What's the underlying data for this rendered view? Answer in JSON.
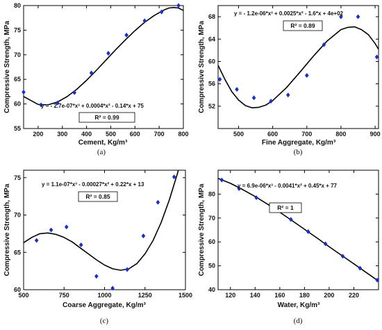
{
  "chart_data": [
    {
      "type": "scatter",
      "panel_label": "(a)",
      "xlabel": "Cement, Kg/m³",
      "ylabel": "Compressive Strength, MPa",
      "xlim": [
        140,
        800
      ],
      "ylim": [
        55,
        80
      ],
      "xticks": [
        "200",
        "300",
        "400",
        "500",
        "600",
        "700",
        "800"
      ],
      "yticks": [
        "55",
        "60",
        "65",
        "70",
        "75",
        "80"
      ],
      "equation": "y = - 2.7e-07*x³ + 0.0004*x² - 0.14*x + 75",
      "r2": "R² = 0.99",
      "x": [
        140,
        212,
        280,
        350,
        420,
        490,
        565,
        640,
        710,
        780
      ],
      "y": [
        62.4,
        59.8,
        60.2,
        62.3,
        66.3,
        70.3,
        74.0,
        76.9,
        78.7,
        80.0
      ],
      "fit_x": [
        140,
        200,
        240,
        280,
        320,
        360,
        400,
        440,
        480,
        520,
        560,
        600,
        640,
        680,
        720,
        740,
        760,
        780,
        800
      ],
      "fit_y": [
        61.5,
        59.9,
        59.8,
        60.4,
        61.5,
        63.0,
        64.8,
        66.8,
        68.9,
        71.0,
        73.0,
        74.9,
        76.6,
        78.0,
        79.1,
        79.5,
        79.6,
        79.5,
        79.0
      ],
      "grid": false,
      "marker_color": "#1a2ecc",
      "line_color": "#000000"
    },
    {
      "type": "scatter",
      "panel_label": "(b)",
      "xlabel": "Fine Aggregate, Kg/m³",
      "ylabel": "Compressive Strength, MPa",
      "xlim": [
        440,
        910
      ],
      "ylim": [
        48,
        70
      ],
      "xticks": [
        "500",
        "600",
        "700",
        "800",
        "900"
      ],
      "yticks": [
        "52",
        "56",
        "60",
        "64",
        "68"
      ],
      "equation": "y = - 1.2e-06*x³ + 0.0025*x² - 1.6*x + 4e+02",
      "r2": "R² = 0.89",
      "x": [
        445,
        495,
        545,
        595,
        645,
        700,
        750,
        800,
        850,
        905
      ],
      "y": [
        56.8,
        55.0,
        53.5,
        52.9,
        54.0,
        57.5,
        63.0,
        68.0,
        68.0,
        60.8
      ],
      "fit_x": [
        440,
        460,
        480,
        500,
        520,
        540,
        560,
        580,
        600,
        640,
        680,
        720,
        760,
        800,
        820,
        840,
        860,
        880,
        900,
        910
      ],
      "fit_y": [
        59.3,
        56.8,
        54.6,
        53.1,
        52.1,
        51.7,
        51.8,
        52.2,
        53.0,
        55.3,
        58.1,
        61.0,
        63.7,
        65.7,
        66.1,
        66.2,
        65.7,
        64.8,
        63.2,
        62.2
      ],
      "grid": false,
      "marker_color": "#1a2ecc",
      "line_color": "#000000"
    },
    {
      "type": "scatter",
      "panel_label": "(c)",
      "xlabel": "Coarse Aggregate, Kg/m³",
      "ylabel": "Compressive Strength, MPa",
      "xlim": [
        500,
        1500
      ],
      "ylim": [
        60,
        76
      ],
      "xticks": [
        "500",
        "750",
        "1000",
        "1250",
        "1500"
      ],
      "yticks": [
        "60",
        "65",
        "70",
        "75"
      ],
      "equation": "y = 1.1e-07*x³ - 0.00027*x² + 0.22*x + 13",
      "r2": "R² = 0.85",
      "x": [
        580,
        670,
        765,
        855,
        950,
        1050,
        1140,
        1240,
        1330,
        1430
      ],
      "y": [
        66.6,
        68.0,
        68.4,
        66.0,
        61.8,
        60.2,
        62.7,
        67.2,
        71.7,
        75.1
      ],
      "fit_x": [
        500,
        550,
        600,
        650,
        700,
        750,
        800,
        850,
        900,
        950,
        1000,
        1050,
        1100,
        1150,
        1200,
        1250,
        1300,
        1350,
        1400,
        1450,
        1460
      ],
      "fit_y": [
        66.3,
        67.0,
        67.5,
        67.6,
        67.4,
        67.0,
        66.4,
        65.6,
        64.8,
        64.0,
        63.3,
        62.8,
        62.6,
        62.8,
        63.5,
        64.8,
        66.6,
        69.0,
        72.0,
        75.5,
        76.3
      ],
      "grid": false,
      "marker_color": "#1a2ecc",
      "line_color": "#000000"
    },
    {
      "type": "scatter",
      "panel_label": "(d)",
      "xlabel": "Water, Kg/m³",
      "ylabel": "Compressive Strength, MPa",
      "xlim": [
        110,
        240
      ],
      "ylim": [
        40,
        90
      ],
      "xticks": [
        "120",
        "140",
        "160",
        "180",
        "200",
        "220"
      ],
      "yticks": [
        "40",
        "50",
        "60",
        "70",
        "80"
      ],
      "equation": "y = 6.9e-06*x³ - 0.0041*x² + 0.45*x + 77",
      "r2": "R² = 1",
      "x": [
        113,
        127,
        141,
        155,
        169,
        183,
        197,
        211,
        225,
        239
      ],
      "y": [
        85.9,
        82.3,
        78.5,
        74.0,
        69.4,
        64.3,
        59.2,
        54.0,
        49.0,
        44.0
      ],
      "fit_x": [
        110,
        120,
        130,
        140,
        150,
        160,
        170,
        180,
        190,
        200,
        210,
        220,
        230,
        240
      ],
      "fit_y": [
        86.6,
        84.5,
        81.9,
        79.0,
        75.8,
        72.4,
        68.9,
        65.3,
        61.7,
        58.0,
        54.4,
        50.8,
        47.2,
        43.6
      ],
      "grid": false,
      "marker_color": "#1a2ecc",
      "line_color": "#000000"
    }
  ]
}
